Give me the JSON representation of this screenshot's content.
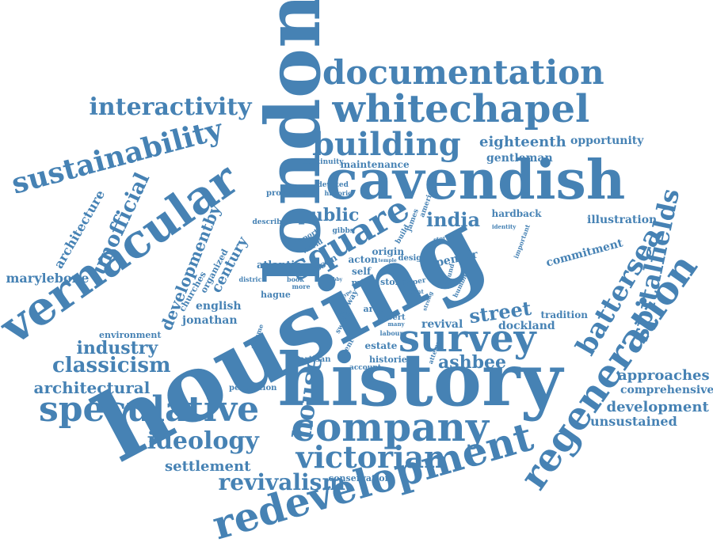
{
  "color": "#4682b4",
  "words": [
    "housing",
    "history",
    "london",
    "cavendish",
    "vernacular",
    "whitechapel",
    "documentation",
    "survey",
    "redevelopment",
    "regeneration",
    "company",
    "speculative",
    "victorian",
    "square",
    "sustainability",
    "building",
    "battersea",
    "spitalfields",
    "house",
    "interactivity",
    "ideology",
    "unofficial",
    "revivalism",
    "street",
    "classicism",
    "architectural",
    "developmentby",
    "architecture",
    "india",
    "public",
    "industry",
    "century",
    "ashbee",
    "eighteenth",
    "settlement",
    "approaches",
    "development",
    "marylebone",
    "comprehensive",
    "unsustained",
    "opportunity",
    "illustration",
    "commitment",
    "english",
    "jonathan",
    "revival",
    "dockland",
    "gentleman",
    "maintenance",
    "hardback",
    "spencer",
    "tradition",
    "estate",
    "histories",
    "conservation",
    "environment",
    "organized",
    "churches",
    "atlantic",
    "lesson",
    "acton",
    "self",
    "origin",
    "hague",
    "mile",
    "stone",
    "area",
    "robert",
    "provision",
    "continuity",
    "devoted",
    "historic",
    "describe",
    "report",
    "world",
    "gibbs",
    "james",
    "build",
    "america",
    "district",
    "book",
    "more",
    "perception",
    "artisan",
    "account",
    "event",
    "sword",
    "railway",
    "labour",
    "many",
    "design",
    "identity",
    "important",
    "paper",
    "ground",
    "humble",
    "strong",
    "attempt",
    "temple",
    "volume",
    "stories",
    "recent",
    "lobby",
    "part",
    "type"
  ]
}
